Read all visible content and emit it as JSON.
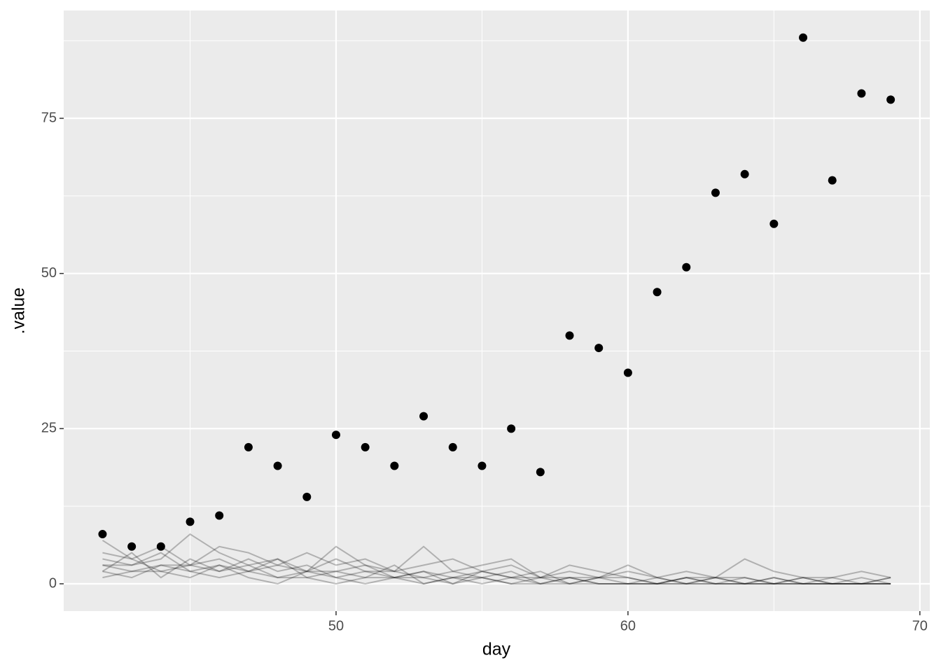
{
  "chart_data": {
    "type": "scatter",
    "x_label": "day",
    "y_label": ".value",
    "x": [
      42,
      43,
      44,
      45,
      46,
      47,
      48,
      49,
      50,
      51,
      52,
      53,
      54,
      55,
      56,
      57,
      58,
      59,
      60,
      61,
      62,
      63,
      64,
      65,
      66,
      67,
      68,
      69
    ],
    "values": [
      8,
      6,
      6,
      10,
      11,
      22,
      19,
      14,
      24,
      22,
      19,
      27,
      22,
      19,
      25,
      18,
      40,
      38,
      34,
      47,
      51,
      63,
      66,
      58,
      88,
      65,
      79,
      78
    ],
    "color": "#000000",
    "line_series": [
      {
        "color": "#000000",
        "values": [
          4,
          3,
          5,
          2,
          3,
          2,
          4,
          1,
          2,
          3,
          1,
          2,
          1,
          2,
          1,
          1,
          0,
          1,
          1,
          0,
          1,
          0,
          1,
          0,
          0,
          1,
          0,
          1
        ]
      },
      {
        "color": "#000000",
        "values": [
          3,
          2,
          3,
          3,
          2,
          4,
          2,
          3,
          1,
          2,
          2,
          1,
          2,
          1,
          0,
          1,
          1,
          0,
          0,
          1,
          0,
          1,
          0,
          0,
          1,
          0,
          0,
          0
        ]
      },
      {
        "color": "#000000",
        "values": [
          2,
          5,
          1,
          4,
          2,
          3,
          1,
          2,
          2,
          1,
          3,
          0,
          1,
          1,
          2,
          0,
          1,
          1,
          0,
          0,
          1,
          0,
          0,
          1,
          0,
          0,
          1,
          0
        ]
      },
      {
        "color": "#000000",
        "values": [
          5,
          4,
          6,
          3,
          4,
          2,
          3,
          2,
          4,
          2,
          1,
          2,
          0,
          2,
          1,
          2,
          0,
          1,
          2,
          1,
          0,
          1,
          1,
          0,
          1,
          0,
          0,
          1
        ]
      },
      {
        "color": "#000000",
        "values": [
          1,
          2,
          2,
          1,
          3,
          1,
          0,
          2,
          1,
          0,
          1,
          1,
          0,
          1,
          0,
          0,
          1,
          0,
          0,
          0,
          0,
          0,
          0,
          0,
          0,
          0,
          0,
          0
        ]
      },
      {
        "color": "#000000",
        "values": [
          3,
          3,
          4,
          8,
          5,
          3,
          4,
          2,
          6,
          3,
          2,
          6,
          2,
          3,
          4,
          1,
          2,
          1,
          3,
          1,
          2,
          1,
          4,
          2,
          1,
          1,
          2,
          1
        ]
      },
      {
        "color": "#000000",
        "values": [
          7,
          4,
          2,
          3,
          6,
          5,
          3,
          5,
          3,
          4,
          2,
          3,
          4,
          2,
          3,
          1,
          3,
          2,
          1,
          0,
          1,
          1,
          0,
          1,
          0,
          0,
          0,
          0
        ]
      },
      {
        "color": "#000000",
        "values": [
          2,
          1,
          3,
          2,
          1,
          2,
          1,
          1,
          0,
          1,
          1,
          0,
          1,
          0,
          1,
          0,
          0,
          0,
          0,
          0,
          0,
          0,
          0,
          0,
          0,
          0,
          0,
          0
        ]
      }
    ],
    "line_opacity": 0.25,
    "xlim": [
      40.67,
      70.34
    ],
    "ylim": [
      -4.4,
      92.37
    ],
    "xticks": [
      50,
      60,
      70
    ],
    "yticks": [
      0,
      25,
      50,
      75
    ],
    "x_minor_ticks": [
      45,
      55,
      65
    ],
    "y_minor_ticks": [
      12.5,
      37.5,
      62.5,
      87.5
    ],
    "grid": true
  }
}
